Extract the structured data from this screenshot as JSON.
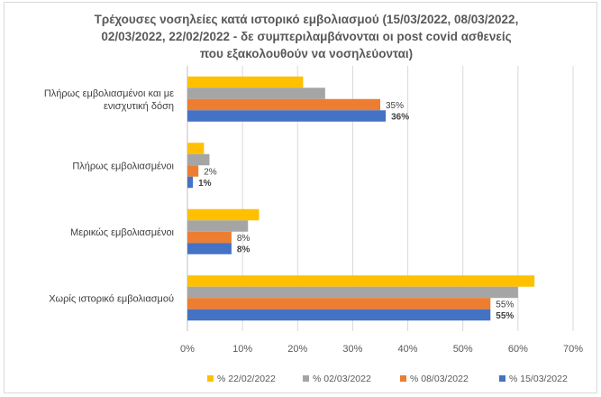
{
  "chart_data": {
    "type": "bar",
    "orientation": "horizontal",
    "title_lines": [
      "Τρέχουσες νοσηλείες κατά ιστορικό εμβολιασμού (15/03/2022, 08/03/2022,",
      "02/03/2022, 22/02/2022 - δε συμπεριλαμβάνονται οι post covid ασθενείς",
      "που εξακολουθούν να νοσηλεύονται)"
    ],
    "categories": [
      [
        "Πλήρως εμβολιασμένοι και με",
        "ενισχυτική δόση"
      ],
      [
        "Πλήρως εμβολιασμένοι"
      ],
      [
        "Μερικώς εμβολιασμένοι"
      ],
      [
        "Χωρίς ιστορικό εμβολιασμού"
      ]
    ],
    "series": [
      {
        "name": "% 22/02/2022",
        "color": "#FFC000",
        "values": [
          21,
          3,
          13,
          63
        ],
        "labels": [
          "",
          "",
          "",
          ""
        ]
      },
      {
        "name": "% 02/03/2022",
        "color": "#A5A5A5",
        "values": [
          25,
          4,
          11,
          60
        ],
        "labels": [
          "",
          "",
          "",
          ""
        ]
      },
      {
        "name": "% 08/03/2022",
        "color": "#ED7D31",
        "values": [
          35,
          2,
          8,
          55
        ],
        "labels": [
          "35%",
          "2%",
          "8%",
          "55%"
        ]
      },
      {
        "name": "% 15/03/2022",
        "color": "#4472C4",
        "values": [
          36,
          1,
          8,
          55
        ],
        "labels": [
          "36%",
          "1%",
          "8%",
          "55%"
        ],
        "bold_labels": true
      }
    ],
    "xlim": [
      0,
      70
    ],
    "xticks": [
      "0%",
      "10%",
      "20%",
      "30%",
      "40%",
      "50%",
      "60%",
      "70%"
    ],
    "grid": true,
    "legend_position": "bottom"
  }
}
